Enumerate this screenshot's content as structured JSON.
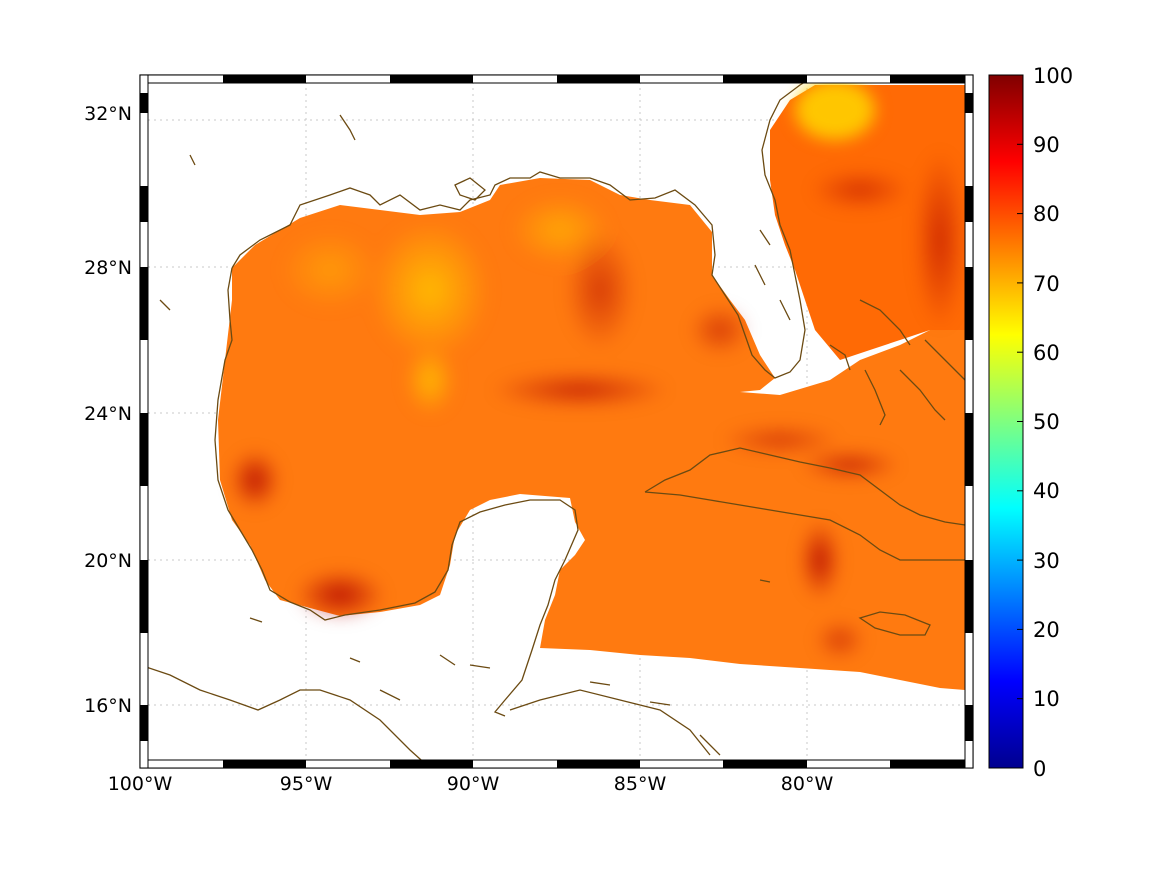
{
  "map": {
    "lon_ticks": [
      "100°W",
      "95°W",
      "90°W",
      "85°W",
      "80°W"
    ],
    "lat_ticks": [
      "32°N",
      "28°N",
      "24°N",
      "20°N",
      "16°N"
    ],
    "colorbar": {
      "ticks": [
        "0",
        "10",
        "20",
        "30",
        "40",
        "50",
        "60",
        "70",
        "80",
        "90",
        "100"
      ],
      "colormap": "jet"
    },
    "colors": {
      "coastline": "#6b4a12",
      "grid": "#c8c8c8",
      "field_low": "#ffb000",
      "field_mid": "#ff6a00",
      "field_high": "#c00000"
    },
    "grid": true
  }
}
